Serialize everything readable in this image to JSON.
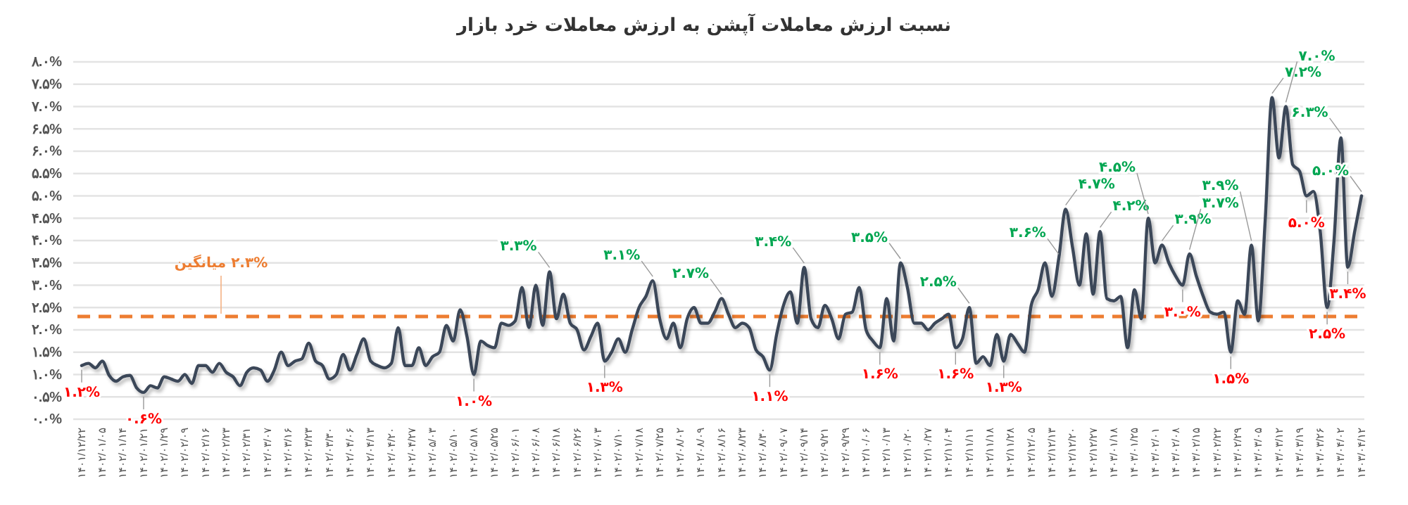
{
  "chart_data": {
    "type": "line",
    "title": "نسبت ارزش معاملات آپشن به ارزش معاملات خرد بازار",
    "categories": [
      "۱۴۰۱/۱۲/۲۲",
      null,
      null,
      "۱۴۰۲/۰۱/۰۵",
      null,
      null,
      "۱۴۰۲/۰۱/۱۴",
      null,
      null,
      "۱۴۰۲/۰۱/۲۱",
      null,
      null,
      "۱۴۰۲/۰۱/۲۹",
      null,
      null,
      "۱۴۰۲/۰۲/۰۹",
      null,
      null,
      "۱۴۰۲/۰۲/۱۶",
      null,
      null,
      "۱۴۰۲/۰۲/۲۳",
      null,
      null,
      "۱۴۰۲/۰۲/۳۱",
      null,
      null,
      "۱۴۰۲/۰۳/۰۷",
      null,
      null,
      "۱۴۰۲/۰۳/۱۶",
      null,
      null,
      "۱۴۰۲/۰۳/۲۳",
      null,
      null,
      "۱۴۰۲/۰۳/۳۰",
      null,
      null,
      "۱۴۰۲/۰۴/۰۶",
      null,
      null,
      "۱۴۰۲/۰۴/۱۳",
      null,
      null,
      "۱۴۰۲/۰۴/۲۰",
      null,
      null,
      "۱۴۰۲/۰۴/۲۷",
      null,
      null,
      "۱۴۰۲/۰۵/۰۳",
      null,
      null,
      "۱۴۰۲/۰۵/۱۰",
      null,
      null,
      "۱۴۰۲/۰۵/۱۸",
      null,
      null,
      "۱۴۰۲/۰۵/۲۵",
      null,
      null,
      "۱۴۰۲/۰۶/۰۱",
      null,
      null,
      "۱۴۰۲/۰۶/۰۸",
      null,
      null,
      "۱۴۰۲/۰۶/۱۸",
      null,
      null,
      "۱۴۰۲/۰۶/۲۶",
      null,
      null,
      "۱۴۰۲/۰۷/۰۳",
      null,
      null,
      "۱۴۰۲/۰۷/۱۰",
      null,
      null,
      "۱۴۰۲/۰۷/۱۸",
      null,
      null,
      "۱۴۰۲/۰۷/۲۵",
      null,
      null,
      "۱۴۰۲/۰۸/۰۲",
      null,
      null,
      "۱۴۰۲/۰۸/۰۹",
      null,
      null,
      "۱۴۰۲/۰۸/۱۶",
      null,
      null,
      "۱۴۰۲/۰۸/۲۳",
      null,
      null,
      "۱۴۰۲/۰۸/۳۰",
      null,
      null,
      "۱۴۰۲/۰۹/۰۷",
      null,
      null,
      "۱۴۰۲/۰۹/۱۴",
      null,
      null,
      "۱۴۰۲/۰۹/۲۱",
      null,
      null,
      "۱۴۰۲/۰۹/۲۹",
      null,
      null,
      "۱۴۰۲/۱۰/۰۶",
      null,
      null,
      "۱۴۰۲/۱۰/۱۳",
      null,
      null,
      "۱۴۰۲/۱۰/۲۰",
      null,
      null,
      "۱۴۰۲/۱۰/۲۷",
      null,
      null,
      "۱۴۰۲/۱۱/۰۴",
      null,
      null,
      "۱۴۰۲/۱۱/۱۱",
      null,
      null,
      "۱۴۰۲/۱۱/۱۸",
      null,
      null,
      "۱۴۰۲/۱۱/۲۸",
      null,
      null,
      "۱۴۰۲/۱۲/۰۵",
      null,
      null,
      "۱۴۰۲/۱۲/۱۳",
      null,
      null,
      "۱۴۰۲/۱۲/۲۰",
      null,
      null,
      "۱۴۰۲/۱۲/۲۷",
      null,
      null,
      "۱۴۰۳/۰۱/۱۸",
      null,
      null,
      "۱۴۰۳/۰۱/۲۵",
      null,
      null,
      "۱۴۰۳/۰۲/۰۱",
      null,
      null,
      "۱۴۰۳/۰۲/۰۸",
      null,
      null,
      "۱۴۰۳/۰۲/۱۵",
      null,
      null,
      "۱۴۰۳/۰۲/۲۲",
      null,
      null,
      "۱۴۰۳/۰۲/۲۹",
      null,
      null,
      "۱۴۰۳/۰۳/۰۵",
      null,
      null,
      "۱۴۰۳/۰۳/۱۲",
      null,
      null,
      "۱۴۰۳/۰۳/۱۹",
      null,
      null,
      "۱۴۰۳/۰۳/۲۶",
      null,
      null,
      "۱۴۰۳/۰۴/۰۲",
      null,
      null,
      "۱۴۰۳/۰۴/۱۲"
    ],
    "series": [
      {
        "color": "#3b4659",
        "values": [
          1.2,
          1.25,
          1.15,
          1.3,
          0.98,
          0.85,
          0.95,
          0.98,
          0.7,
          0.6,
          0.75,
          0.7,
          0.95,
          0.9,
          0.85,
          1.0,
          0.8,
          1.2,
          1.2,
          1.05,
          1.25,
          1.05,
          0.95,
          0.75,
          1.05,
          1.15,
          1.1,
          0.85,
          1.1,
          1.5,
          1.2,
          1.3,
          1.35,
          1.7,
          1.3,
          1.2,
          0.9,
          1.0,
          1.45,
          1.1,
          1.45,
          1.8,
          1.3,
          1.2,
          1.15,
          1.25,
          2.05,
          1.2,
          1.2,
          1.6,
          1.2,
          1.4,
          1.5,
          2.1,
          1.75,
          2.45,
          1.85,
          1.0,
          1.75,
          1.65,
          1.6,
          2.15,
          2.1,
          2.2,
          2.95,
          2.05,
          3.0,
          2.1,
          3.3,
          2.25,
          2.8,
          2.15,
          2.0,
          1.55,
          1.85,
          2.15,
          1.3,
          1.5,
          1.8,
          1.5,
          2.0,
          2.5,
          2.75,
          3.1,
          2.25,
          1.8,
          2.15,
          1.6,
          2.25,
          2.5,
          2.15,
          2.15,
          2.4,
          2.7,
          2.35,
          2.05,
          2.15,
          2.05,
          1.55,
          1.4,
          1.1,
          1.9,
          2.55,
          2.85,
          2.15,
          3.4,
          2.25,
          2.05,
          2.55,
          2.25,
          1.8,
          2.35,
          2.4,
          2.95,
          2.0,
          1.75,
          1.6,
          2.7,
          1.75,
          3.5,
          2.95,
          2.15,
          2.15,
          2.0,
          2.15,
          2.25,
          2.35,
          1.6,
          1.8,
          2.5,
          1.25,
          1.4,
          1.2,
          1.9,
          1.3,
          1.9,
          1.7,
          1.5,
          2.55,
          2.9,
          3.5,
          2.75,
          3.6,
          4.7,
          3.85,
          3.0,
          4.15,
          2.8,
          4.2,
          2.7,
          2.65,
          2.75,
          1.6,
          2.9,
          2.25,
          4.5,
          3.5,
          3.9,
          3.5,
          3.2,
          3.0,
          3.7,
          3.2,
          2.75,
          2.4,
          2.35,
          2.4,
          1.5,
          2.65,
          2.35,
          3.9,
          2.2,
          4.45,
          7.2,
          5.85,
          7.0,
          5.7,
          5.55,
          5.0,
          5.1,
          4.2,
          2.5,
          4.0,
          6.3,
          3.4,
          4.2,
          5.0
        ],
        "value_labels": [
          "۱.۲%",
          null,
          null,
          null,
          null,
          null,
          null,
          null,
          null,
          "۰.۶%",
          null,
          null,
          null,
          null,
          null,
          null,
          null,
          null,
          null,
          null,
          null,
          null,
          null,
          null,
          null,
          null,
          null,
          null,
          null,
          null,
          null,
          null,
          null,
          null,
          null,
          null,
          null,
          null,
          null,
          null,
          null,
          null,
          null,
          null,
          null,
          null,
          null,
          null,
          null,
          null,
          null,
          null,
          null,
          null,
          null,
          null,
          null,
          "۱.۰%",
          null,
          null,
          null,
          null,
          null,
          null,
          null,
          null,
          null,
          null,
          "۳.۳%",
          null,
          null,
          null,
          null,
          null,
          null,
          null,
          "۱.۳%",
          null,
          null,
          null,
          null,
          null,
          null,
          "۳.۱%",
          null,
          null,
          null,
          null,
          null,
          null,
          null,
          null,
          null,
          "۲.۷%",
          null,
          null,
          null,
          null,
          null,
          null,
          "۱.۱%",
          null,
          null,
          null,
          null,
          "۳.۴%",
          null,
          null,
          null,
          null,
          null,
          null,
          null,
          null,
          null,
          null,
          "۱.۶%",
          null,
          null,
          "۳.۵%",
          null,
          null,
          null,
          null,
          null,
          null,
          null,
          "۱.۶%",
          null,
          "۲.۵%",
          null,
          null,
          null,
          null,
          "۱.۳%",
          null,
          null,
          null,
          null,
          null,
          null,
          null,
          "۳.۶%",
          "۴.۷%",
          null,
          null,
          null,
          null,
          "۴.۲%",
          null,
          null,
          null,
          null,
          null,
          null,
          "۴.۵%",
          null,
          "۳.۹%",
          null,
          null,
          "۳.۰%",
          "۳.۷%",
          null,
          null,
          null,
          null,
          null,
          "۱.۵%",
          null,
          null,
          "۳.۹%",
          null,
          null,
          "۷.۲%",
          null,
          "۷.۰%",
          null,
          null,
          "۵.۰%",
          null,
          null,
          "۲.۵%",
          null,
          "۶.۳%",
          "۳.۴%",
          null,
          "۵.۰%"
        ]
      }
    ],
    "ylim": [
      0,
      8
    ],
    "yticks": [
      {
        "value": 0,
        "label": "۰.۰%"
      },
      {
        "value": 0.5,
        "label": "۰.۵%"
      },
      {
        "value": 1,
        "label": "۱.۰%"
      },
      {
        "value": 1.5,
        "label": "۱.۵%"
      },
      {
        "value": 2,
        "label": "۲.۰%"
      },
      {
        "value": 2.5,
        "label": "۲.۵%"
      },
      {
        "value": 3,
        "label": "۳.۰%"
      },
      {
        "value": 3.5,
        "label": "۳.۵%"
      },
      {
        "value": 4,
        "label": "۴.۰%"
      },
      {
        "value": 4.5,
        "label": "۴.۵%"
      },
      {
        "value": 5,
        "label": "۵.۰%"
      },
      {
        "value": 5.5,
        "label": "۵.۵%"
      },
      {
        "value": 6,
        "label": "۶.۰%"
      },
      {
        "value": 6.5,
        "label": "۶.۵%"
      },
      {
        "value": 7,
        "label": "۷.۰%"
      },
      {
        "value": 7.5,
        "label": "۷.۵%"
      },
      {
        "value": 8,
        "label": "۸.۰%"
      }
    ],
    "grid": "y",
    "ref_lines": [
      {
        "axis": "y",
        "value": 2.3,
        "label": "۲.۳% میانگین",
        "color": "#ed7d31",
        "line_style": "dashed"
      }
    ]
  }
}
